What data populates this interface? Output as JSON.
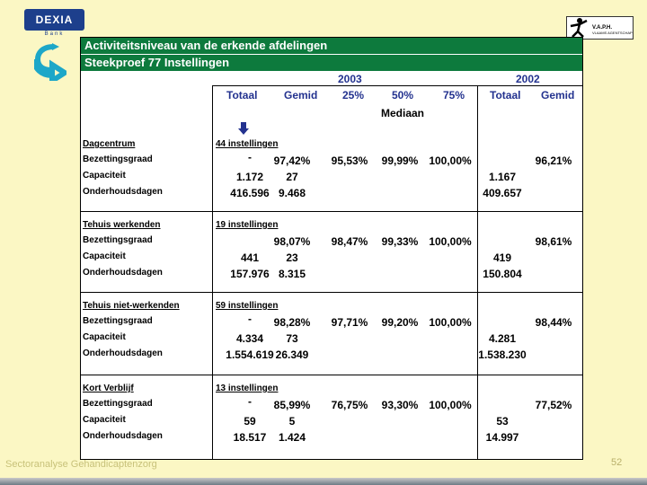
{
  "logo": {
    "text": "DEXIA",
    "sub": "Bank"
  },
  "vaph": {
    "title": "V.A.P.H.",
    "sub": "VLAAMS AGENTSCHAP"
  },
  "title": "Activiteitsniveau van de erkende afdelingen",
  "subtitle": "Steekproef 77 Instellingen",
  "years": {
    "y2003": "2003",
    "y2002": "2002"
  },
  "columns": {
    "totaal": "Totaal",
    "gemid": "Gemid",
    "p25": "25%",
    "p50": "50%",
    "p75": "75%",
    "mediaan": "Mediaan",
    "totaal2": "Totaal",
    "gemid2": "Gemid"
  },
  "sections": [
    {
      "name": "Dagcentrum",
      "count": "44 instellingen",
      "bez": {
        "totaal": "-",
        "gemid": "97,42%",
        "p25": "95,53%",
        "p50": "99,99%",
        "p75": "100,00%",
        "gemid2": "96,21%"
      },
      "cap": {
        "totaal": "1.172",
        "gemid": "27",
        "totaal2": "1.167"
      },
      "ond": {
        "totaal": "416.596",
        "gemid": "9.468",
        "totaal2": "409.657"
      }
    },
    {
      "name": "Tehuis werkenden",
      "count": "19 instellingen",
      "bez": {
        "totaal": "",
        "gemid": "98,07%",
        "p25": "98,47%",
        "p50": "99,33%",
        "p75": "100,00%",
        "gemid2": "98,61%"
      },
      "cap": {
        "totaal": "441",
        "gemid": "23",
        "totaal2": "419"
      },
      "ond": {
        "totaal": "157.976",
        "gemid": "8.315",
        "totaal2": "150.804"
      }
    },
    {
      "name": "Tehuis niet-werkenden",
      "count": "59 instellingen",
      "bez": {
        "totaal": "-",
        "gemid": "98,28%",
        "p25": "97,71%",
        "p50": "99,20%",
        "p75": "100,00%",
        "gemid2": "98,44%"
      },
      "cap": {
        "totaal": "4.334",
        "gemid": "73",
        "totaal2": "4.281"
      },
      "ond": {
        "totaal": "1.554.619",
        "gemid": "26.349",
        "totaal2": "1.538.230"
      }
    },
    {
      "name": "Kort Verblijf",
      "count": "13 instellingen",
      "bez": {
        "totaal": "-",
        "gemid": "85,99%",
        "p25": "76,75%",
        "p50": "93,30%",
        "p75": "100,00%",
        "gemid2": "77,52%"
      },
      "cap": {
        "totaal": "59",
        "gemid": "5",
        "totaal2": "53"
      },
      "ond": {
        "totaal": "18.517",
        "gemid": "1.424",
        "totaal2": "14.997"
      }
    }
  ],
  "rowlabels": {
    "bez": "Bezettingsgraad",
    "cap": "Capaciteit",
    "ond": "Onderhoudsdagen"
  },
  "footer": "Sectoranalyse Gehandicaptenzorg",
  "page": "52"
}
